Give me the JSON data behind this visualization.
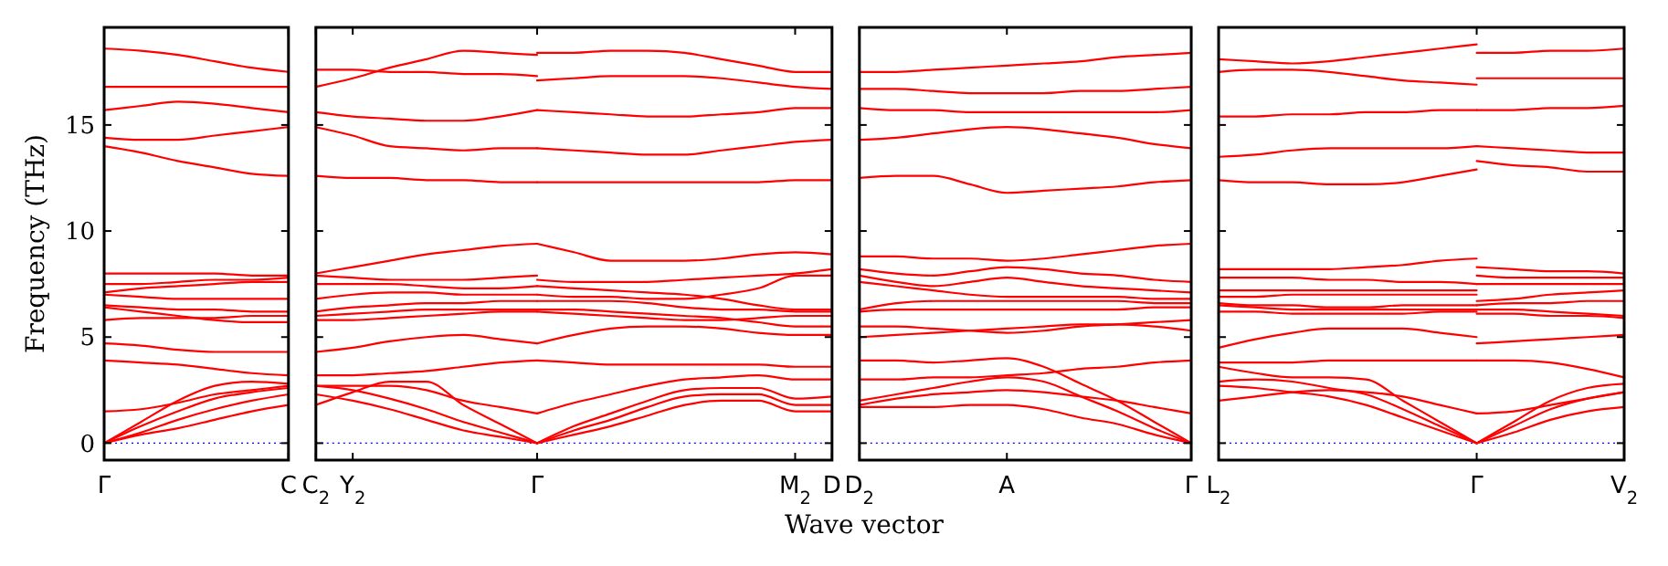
{
  "chart_data": [
    {
      "type": "line",
      "ylabel": "Frequency (THz)",
      "color": "#ff0000",
      "ylim": [
        -0.8,
        19.6
      ],
      "yticks": [
        0,
        5,
        10,
        15
      ],
      "categories": [
        "Γ",
        null,
        null,
        null,
        null,
        "C"
      ],
      "ref_lines": [
        {
          "axis": "y",
          "value": 0,
          "color": "#0000ff",
          "line_style": "dotted"
        }
      ],
      "series": [
        {
          "values": [
            18.6,
            18.5,
            18.3,
            18.0,
            17.7,
            17.5
          ]
        },
        {
          "values": [
            16.8,
            16.8,
            16.8,
            16.8,
            16.8,
            16.8
          ]
        },
        {
          "values": [
            15.7,
            15.9,
            16.1,
            16.0,
            15.8,
            15.6
          ]
        },
        {
          "values": [
            14.4,
            14.3,
            14.3,
            14.5,
            14.7,
            14.9
          ]
        },
        {
          "values": [
            14.0,
            13.7,
            13.3,
            13.0,
            12.7,
            12.6
          ]
        },
        {
          "values": [
            8.0,
            8.0,
            8.0,
            8.0,
            7.9,
            7.9
          ]
        },
        {
          "values": [
            7.5,
            7.5,
            7.6,
            7.7,
            7.7,
            7.8
          ]
        },
        {
          "values": [
            7.1,
            7.3,
            7.4,
            7.5,
            7.6,
            7.6
          ]
        },
        {
          "values": [
            7.0,
            6.9,
            6.8,
            6.8,
            6.8,
            6.8
          ]
        },
        {
          "values": [
            6.5,
            6.4,
            6.3,
            6.3,
            6.2,
            6.2
          ]
        },
        {
          "values": [
            6.4,
            6.2,
            6.0,
            5.8,
            5.7,
            5.7
          ]
        },
        {
          "values": [
            5.8,
            5.9,
            5.9,
            5.9,
            6.0,
            6.0
          ]
        },
        {
          "values": [
            4.7,
            4.6,
            4.4,
            4.3,
            4.3,
            4.3
          ]
        },
        {
          "values": [
            3.9,
            3.8,
            3.7,
            3.5,
            3.3,
            3.2
          ]
        },
        {
          "values": [
            1.5,
            1.6,
            1.9,
            2.3,
            2.5,
            2.7
          ]
        },
        {
          "values": [
            0,
            1.0,
            2.0,
            2.7,
            2.9,
            2.8
          ]
        },
        {
          "values": [
            0,
            0.8,
            1.5,
            2.1,
            2.4,
            2.6
          ]
        },
        {
          "values": [
            0,
            0.5,
            1.1,
            1.6,
            2.0,
            2.3
          ]
        },
        {
          "values": [
            0,
            0.4,
            0.7,
            1.1,
            1.5,
            1.8
          ]
        }
      ]
    },
    {
      "type": "line",
      "xlabel": "Wave vector",
      "color": "#ff0000",
      "ylim": [
        -0.8,
        19.6
      ],
      "yticks": [
        0,
        5,
        10,
        15
      ],
      "tick_labels": "x",
      "categories": [
        "C$_{2}$",
        "Y$_{2}$",
        null,
        null,
        null,
        null,
        "Γ",
        null,
        null,
        null,
        null,
        null,
        null,
        "M$_{2}$",
        "D"
      ],
      "ref_lines": [
        {
          "axis": "y",
          "value": 0,
          "color": "#0000ff",
          "line_style": "dotted"
        }
      ],
      "series": [
        {
          "values": [
            16.8,
            17.2,
            17.7,
            18.1,
            18.5,
            18.4,
            18.3,
            null,
            null,
            null,
            null,
            null,
            null,
            null,
            null
          ]
        },
        {
          "values": [
            17.6,
            17.6,
            17.5,
            17.5,
            17.4,
            17.4,
            17.3,
            null,
            null,
            null,
            null,
            null,
            null,
            null,
            null
          ]
        },
        {
          "values": [
            15.6,
            15.4,
            15.3,
            15.2,
            15.2,
            15.4,
            15.7,
            null,
            null,
            null,
            null,
            null,
            null,
            null,
            null
          ]
        },
        {
          "values": [
            14.9,
            14.5,
            14.0,
            13.9,
            13.8,
            13.9,
            13.9,
            null,
            null,
            null,
            null,
            null,
            null,
            null,
            null
          ]
        },
        {
          "values": [
            12.6,
            12.5,
            12.5,
            12.4,
            12.4,
            12.3,
            12.3,
            null,
            null,
            null,
            null,
            null,
            null,
            null,
            null
          ]
        },
        {
          "values": [
            8.0,
            8.3,
            8.6,
            8.9,
            9.1,
            9.3,
            9.4,
            null,
            null,
            null,
            null,
            null,
            null,
            null,
            null
          ]
        },
        {
          "values": [
            7.9,
            7.8,
            7.7,
            7.7,
            7.7,
            7.8,
            7.9,
            null,
            null,
            null,
            null,
            null,
            null,
            null,
            null
          ]
        },
        {
          "values": [
            7.5,
            7.5,
            7.5,
            7.4,
            7.3,
            7.3,
            7.4,
            null,
            null,
            null,
            null,
            null,
            null,
            null,
            null
          ]
        },
        {
          "values": [
            6.8,
            7.0,
            7.1,
            7.1,
            7.0,
            7.0,
            7.0,
            null,
            null,
            null,
            null,
            null,
            null,
            null,
            null
          ]
        },
        {
          "values": [
            6.2,
            6.4,
            6.5,
            6.6,
            6.6,
            6.7,
            6.7,
            null,
            null,
            null,
            null,
            null,
            null,
            null,
            null
          ]
        },
        {
          "values": [
            6.0,
            6.1,
            6.2,
            6.3,
            6.3,
            6.3,
            6.3,
            null,
            null,
            null,
            null,
            null,
            null,
            null,
            null
          ]
        },
        {
          "values": [
            5.8,
            5.8,
            5.9,
            6.0,
            6.1,
            6.2,
            6.2,
            null,
            null,
            null,
            null,
            null,
            null,
            null,
            null
          ]
        },
        {
          "values": [
            4.3,
            4.5,
            4.8,
            5.0,
            5.1,
            4.9,
            4.7,
            null,
            null,
            null,
            null,
            null,
            null,
            null,
            null
          ]
        },
        {
          "values": [
            3.2,
            3.2,
            3.3,
            3.4,
            3.6,
            3.8,
            3.9,
            null,
            null,
            null,
            null,
            null,
            null,
            null,
            null
          ]
        },
        {
          "values": [
            1.8,
            2.4,
            2.9,
            2.9,
            1.8,
            0.9,
            0,
            null,
            null,
            null,
            null,
            null,
            null,
            null,
            null
          ]
        },
        {
          "values": [
            2.7,
            2.5,
            2.1,
            1.6,
            1.0,
            0.5,
            0,
            null,
            null,
            null,
            null,
            null,
            null,
            null,
            null
          ]
        },
        {
          "values": [
            2.3,
            2.0,
            1.6,
            1.1,
            0.6,
            0.3,
            0,
            null,
            null,
            null,
            null,
            null,
            null,
            null,
            null
          ]
        },
        {
          "values": [
            2.7,
            2.7,
            2.7,
            2.5,
            2.0,
            1.7,
            1.4,
            null,
            null,
            null,
            null,
            null,
            null,
            null,
            null
          ]
        },
        {
          "values": [
            null,
            null,
            null,
            null,
            null,
            null,
            18.4,
            18.4,
            18.5,
            18.5,
            18.4,
            18.1,
            17.8,
            17.5,
            17.5
          ]
        },
        {
          "values": [
            null,
            null,
            null,
            null,
            null,
            null,
            17.1,
            17.2,
            17.3,
            17.3,
            17.3,
            17.2,
            17.0,
            16.8,
            16.7
          ]
        },
        {
          "values": [
            null,
            null,
            null,
            null,
            null,
            null,
            15.7,
            15.6,
            15.5,
            15.4,
            15.4,
            15.5,
            15.6,
            15.8,
            15.8
          ]
        },
        {
          "values": [
            null,
            null,
            null,
            null,
            null,
            null,
            13.9,
            13.8,
            13.7,
            13.6,
            13.6,
            13.8,
            14.0,
            14.2,
            14.3
          ]
        },
        {
          "values": [
            null,
            null,
            null,
            null,
            null,
            null,
            12.3,
            12.3,
            12.3,
            12.3,
            12.3,
            12.3,
            12.3,
            12.4,
            12.4
          ]
        },
        {
          "values": [
            null,
            null,
            null,
            null,
            null,
            null,
            9.4,
            9.0,
            8.6,
            8.6,
            8.6,
            8.7,
            8.9,
            9.0,
            8.9
          ]
        },
        {
          "values": [
            null,
            null,
            null,
            null,
            null,
            null,
            7.7,
            7.6,
            7.6,
            7.6,
            7.7,
            7.8,
            7.9,
            8.0,
            8.2
          ]
        },
        {
          "values": [
            null,
            null,
            null,
            null,
            null,
            null,
            7.4,
            7.3,
            7.2,
            7.1,
            7.0,
            6.8,
            6.5,
            6.3,
            6.3
          ]
        },
        {
          "values": [
            null,
            null,
            null,
            null,
            null,
            null,
            7.0,
            6.9,
            6.9,
            6.8,
            6.8,
            7.0,
            7.3,
            7.9,
            7.9
          ]
        },
        {
          "values": [
            null,
            null,
            null,
            null,
            null,
            null,
            6.7,
            6.7,
            6.7,
            6.6,
            6.4,
            6.3,
            6.3,
            6.2,
            6.2
          ]
        },
        {
          "values": [
            null,
            null,
            null,
            null,
            null,
            null,
            6.3,
            6.3,
            6.2,
            6.1,
            6.0,
            5.9,
            5.7,
            5.5,
            5.5
          ]
        },
        {
          "values": [
            null,
            null,
            null,
            null,
            null,
            null,
            6.2,
            6.1,
            6.0,
            5.9,
            5.8,
            5.8,
            5.9,
            6.0,
            6.0
          ]
        },
        {
          "values": [
            null,
            null,
            null,
            null,
            null,
            null,
            4.7,
            5.1,
            5.4,
            5.5,
            5.5,
            5.4,
            5.2,
            5.1,
            5.1
          ]
        },
        {
          "values": [
            null,
            null,
            null,
            null,
            null,
            null,
            3.9,
            3.8,
            3.7,
            3.7,
            3.7,
            3.7,
            3.7,
            3.6,
            3.6
          ]
        },
        {
          "values": [
            null,
            null,
            null,
            null,
            null,
            null,
            1.4,
            1.9,
            2.3,
            2.7,
            3.0,
            3.1,
            3.2,
            3.0,
            3.0
          ]
        },
        {
          "values": [
            null,
            null,
            null,
            null,
            null,
            null,
            0,
            0.8,
            1.4,
            2.0,
            2.5,
            2.6,
            2.6,
            2.1,
            2.2
          ]
        },
        {
          "values": [
            null,
            null,
            null,
            null,
            null,
            null,
            0,
            0.6,
            1.1,
            1.7,
            2.2,
            2.3,
            2.3,
            1.8,
            1.8
          ]
        },
        {
          "values": [
            null,
            null,
            null,
            null,
            null,
            null,
            0,
            0.4,
            0.8,
            1.3,
            1.8,
            2.0,
            2.0,
            1.5,
            1.5
          ]
        }
      ]
    },
    {
      "type": "line",
      "color": "#ff0000",
      "ylim": [
        -0.8,
        19.6
      ],
      "yticks": [
        0,
        5,
        10,
        15
      ],
      "tick_labels": "x",
      "categories": [
        "D$_{2}$",
        null,
        null,
        null,
        "A",
        null,
        null,
        null,
        null,
        "Γ"
      ],
      "ref_lines": [
        {
          "axis": "y",
          "value": 0,
          "color": "#0000ff",
          "line_style": "dotted"
        }
      ],
      "series": [
        {
          "values": [
            17.5,
            17.5,
            17.6,
            17.7,
            17.8,
            17.9,
            18.0,
            18.2,
            18.3,
            18.4
          ]
        },
        {
          "values": [
            16.7,
            16.7,
            16.6,
            16.5,
            16.5,
            16.5,
            16.6,
            16.6,
            16.7,
            16.8
          ]
        },
        {
          "values": [
            15.8,
            15.7,
            15.7,
            15.6,
            15.6,
            15.6,
            15.6,
            15.6,
            15.6,
            15.7
          ]
        },
        {
          "values": [
            14.3,
            14.4,
            14.6,
            14.8,
            14.9,
            14.8,
            14.6,
            14.4,
            14.1,
            13.9
          ]
        },
        {
          "values": [
            12.5,
            12.6,
            12.6,
            12.2,
            11.8,
            11.9,
            12.0,
            12.1,
            12.3,
            12.4
          ]
        },
        {
          "values": [
            8.8,
            8.8,
            8.7,
            8.7,
            8.6,
            8.7,
            8.9,
            9.1,
            9.3,
            9.4
          ]
        },
        {
          "values": [
            8.2,
            8.0,
            7.9,
            8.1,
            8.3,
            8.2,
            8.0,
            7.9,
            7.7,
            7.6
          ]
        },
        {
          "values": [
            7.9,
            7.6,
            7.4,
            7.6,
            7.8,
            7.6,
            7.4,
            7.3,
            7.2,
            7.1
          ]
        },
        {
          "values": [
            7.6,
            7.4,
            7.2,
            7.0,
            6.9,
            6.9,
            6.9,
            6.9,
            6.8,
            6.8
          ]
        },
        {
          "values": [
            6.3,
            6.6,
            6.7,
            6.7,
            6.7,
            6.7,
            6.7,
            6.7,
            6.6,
            6.6
          ]
        },
        {
          "values": [
            6.2,
            6.3,
            6.3,
            6.3,
            6.3,
            6.3,
            6.3,
            6.3,
            6.4,
            6.4
          ]
        },
        {
          "values": [
            5.5,
            5.5,
            5.4,
            5.3,
            5.2,
            5.3,
            5.5,
            5.6,
            5.7,
            5.8
          ]
        },
        {
          "values": [
            5.0,
            5.1,
            5.2,
            5.3,
            5.4,
            5.5,
            5.6,
            5.6,
            5.5,
            5.3
          ]
        },
        {
          "values": [
            3.9,
            3.9,
            3.8,
            3.9,
            4.0,
            3.6,
            2.8,
            2.0,
            1.0,
            0
          ]
        },
        {
          "values": [
            3.0,
            3.0,
            3.1,
            3.1,
            3.2,
            3.3,
            3.5,
            3.6,
            3.8,
            3.9
          ]
        },
        {
          "values": [
            2.0,
            2.3,
            2.6,
            2.9,
            3.1,
            2.9,
            2.2,
            1.5,
            0.7,
            0
          ]
        },
        {
          "values": [
            1.8,
            2.1,
            2.3,
            2.4,
            2.5,
            2.4,
            2.2,
            2.0,
            1.7,
            1.4
          ]
        },
        {
          "values": [
            1.7,
            1.7,
            1.7,
            1.8,
            1.8,
            1.6,
            1.2,
            0.9,
            0.4,
            0
          ]
        }
      ]
    },
    {
      "type": "line",
      "color": "#ff0000",
      "ylim": [
        -0.8,
        19.6
      ],
      "yticks": [
        0,
        5,
        10,
        15
      ],
      "tick_labels": "x",
      "categories": [
        "L$_{2}$",
        null,
        null,
        null,
        null,
        null,
        null,
        "Γ",
        null,
        null,
        null,
        "V$_{2}$"
      ],
      "ref_lines": [
        {
          "axis": "y",
          "value": 0,
          "color": "#0000ff",
          "line_style": "dotted"
        }
      ],
      "series": [
        {
          "values": [
            18.1,
            18.0,
            17.9,
            18.0,
            18.2,
            18.4,
            18.6,
            18.8,
            null,
            null,
            null,
            null
          ]
        },
        {
          "values": [
            17.5,
            17.6,
            17.6,
            17.5,
            17.3,
            17.1,
            17.0,
            16.9,
            null,
            null,
            null,
            null
          ]
        },
        {
          "values": [
            15.4,
            15.4,
            15.5,
            15.5,
            15.6,
            15.6,
            15.7,
            15.7,
            null,
            null,
            null,
            null
          ]
        },
        {
          "values": [
            13.5,
            13.6,
            13.8,
            13.9,
            13.9,
            13.9,
            13.9,
            14.0,
            null,
            null,
            null,
            null
          ]
        },
        {
          "values": [
            12.4,
            12.3,
            12.3,
            12.2,
            12.2,
            12.3,
            12.6,
            12.9,
            null,
            null,
            null,
            null
          ]
        },
        {
          "values": [
            8.2,
            8.2,
            8.2,
            8.2,
            8.3,
            8.4,
            8.6,
            8.7,
            null,
            null,
            null,
            null
          ]
        },
        {
          "values": [
            7.8,
            7.8,
            7.8,
            7.7,
            7.7,
            7.6,
            7.6,
            7.5,
            null,
            null,
            null,
            null
          ]
        },
        {
          "values": [
            7.2,
            7.2,
            7.2,
            7.2,
            7.2,
            7.2,
            7.2,
            7.2,
            null,
            null,
            null,
            null
          ]
        },
        {
          "values": [
            6.9,
            6.9,
            7.0,
            7.0,
            7.0,
            7.0,
            7.0,
            7.0,
            null,
            null,
            null,
            null
          ]
        },
        {
          "values": [
            6.6,
            6.5,
            6.5,
            6.4,
            6.4,
            6.5,
            6.5,
            6.5,
            null,
            null,
            null,
            null
          ]
        },
        {
          "values": [
            6.5,
            6.4,
            6.3,
            6.3,
            6.3,
            6.3,
            6.3,
            6.3,
            null,
            null,
            null,
            null
          ]
        },
        {
          "values": [
            6.2,
            6.2,
            6.1,
            6.1,
            6.1,
            6.1,
            6.2,
            6.2,
            null,
            null,
            null,
            null
          ]
        },
        {
          "values": [
            4.5,
            4.9,
            5.2,
            5.4,
            5.4,
            5.4,
            5.2,
            5.0,
            null,
            null,
            null,
            null
          ]
        },
        {
          "values": [
            3.8,
            3.8,
            3.8,
            3.9,
            3.9,
            3.9,
            3.9,
            3.9,
            null,
            null,
            null,
            null
          ]
        },
        {
          "values": [
            3.6,
            3.3,
            3.1,
            3.1,
            3.0,
            2.0,
            1.0,
            0,
            null,
            null,
            null,
            null
          ]
        },
        {
          "values": [
            2.9,
            3.0,
            2.9,
            2.6,
            2.3,
            1.6,
            0.8,
            0,
            null,
            null,
            null,
            null
          ]
        },
        {
          "values": [
            2.7,
            2.6,
            2.4,
            2.2,
            1.8,
            1.2,
            0.6,
            0,
            null,
            null,
            null,
            null
          ]
        },
        {
          "values": [
            2.0,
            2.2,
            2.4,
            2.5,
            2.4,
            2.2,
            1.8,
            1.4,
            null,
            null,
            null,
            null
          ]
        },
        {
          "values": [
            null,
            null,
            null,
            null,
            null,
            null,
            null,
            18.4,
            18.4,
            18.5,
            18.5,
            18.6
          ]
        },
        {
          "values": [
            null,
            null,
            null,
            null,
            null,
            null,
            null,
            17.2,
            17.2,
            17.2,
            17.2,
            17.2
          ]
        },
        {
          "values": [
            null,
            null,
            null,
            null,
            null,
            null,
            null,
            15.7,
            15.7,
            15.8,
            15.8,
            15.9
          ]
        },
        {
          "values": [
            null,
            null,
            null,
            null,
            null,
            null,
            null,
            14.0,
            13.9,
            13.8,
            13.7,
            13.7
          ]
        },
        {
          "values": [
            null,
            null,
            null,
            null,
            null,
            null,
            null,
            13.3,
            13.1,
            13.0,
            12.8,
            12.8
          ]
        },
        {
          "values": [
            null,
            null,
            null,
            null,
            null,
            null,
            null,
            8.3,
            8.2,
            8.1,
            8.1,
            8.0
          ]
        },
        {
          "values": [
            null,
            null,
            null,
            null,
            null,
            null,
            null,
            7.9,
            7.8,
            7.8,
            7.8,
            7.8
          ]
        },
        {
          "values": [
            null,
            null,
            null,
            null,
            null,
            null,
            null,
            7.5,
            7.5,
            7.5,
            7.5,
            7.5
          ]
        },
        {
          "values": [
            null,
            null,
            null,
            null,
            null,
            null,
            null,
            6.7,
            6.8,
            7.0,
            7.1,
            7.2
          ]
        },
        {
          "values": [
            null,
            null,
            null,
            null,
            null,
            null,
            null,
            6.5,
            6.6,
            6.6,
            6.7,
            6.7
          ]
        },
        {
          "values": [
            null,
            null,
            null,
            null,
            null,
            null,
            null,
            6.3,
            6.3,
            6.2,
            6.1,
            6.0
          ]
        },
        {
          "values": [
            null,
            null,
            null,
            null,
            null,
            null,
            null,
            6.1,
            6.1,
            6.0,
            6.0,
            5.9
          ]
        },
        {
          "values": [
            null,
            null,
            null,
            null,
            null,
            null,
            null,
            4.7,
            4.8,
            4.9,
            5.0,
            5.1
          ]
        },
        {
          "values": [
            null,
            null,
            null,
            null,
            null,
            null,
            null,
            3.9,
            3.9,
            3.8,
            3.5,
            3.1
          ]
        },
        {
          "values": [
            null,
            null,
            null,
            null,
            null,
            null,
            null,
            1.4,
            1.5,
            1.8,
            2.1,
            2.4
          ]
        },
        {
          "values": [
            null,
            null,
            null,
            null,
            null,
            null,
            null,
            0,
            1.0,
            2.0,
            2.6,
            2.8
          ]
        },
        {
          "values": [
            null,
            null,
            null,
            null,
            null,
            null,
            null,
            0,
            0.8,
            1.6,
            2.1,
            2.4
          ]
        },
        {
          "values": [
            null,
            null,
            null,
            null,
            null,
            null,
            null,
            0,
            0.5,
            1.1,
            1.5,
            1.7
          ]
        }
      ]
    }
  ]
}
